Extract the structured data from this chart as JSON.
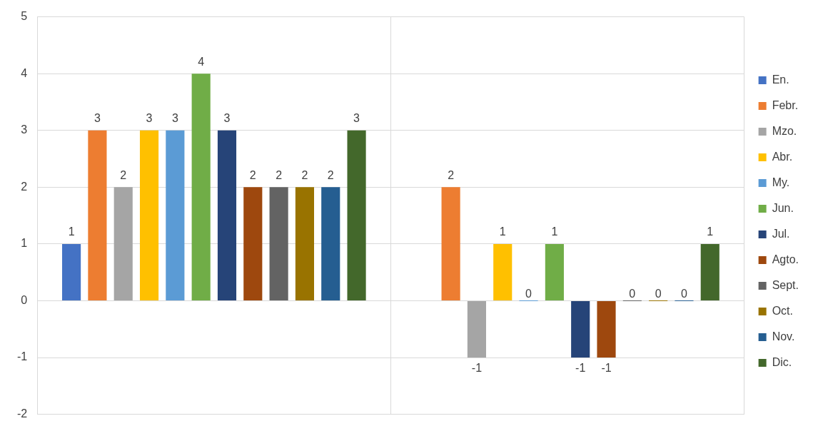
{
  "chart_data": {
    "type": "bar",
    "categories": [
      null,
      null
    ],
    "series": [
      {
        "name": "En.",
        "color": "#4472c4",
        "values": [
          1,
          null
        ]
      },
      {
        "name": "Febr.",
        "color": "#ed7d31",
        "values": [
          3,
          2
        ]
      },
      {
        "name": "Mzo.",
        "color": "#a5a5a5",
        "values": [
          2,
          -1
        ]
      },
      {
        "name": "Abr.",
        "color": "#ffc000",
        "values": [
          3,
          1
        ]
      },
      {
        "name": "My.",
        "color": "#5b9bd5",
        "values": [
          3,
          0
        ]
      },
      {
        "name": "Jun.",
        "color": "#70ad47",
        "values": [
          4,
          1
        ]
      },
      {
        "name": "Jul.",
        "color": "#264478",
        "values": [
          3,
          -1
        ]
      },
      {
        "name": "Agto.",
        "color": "#9e480e",
        "values": [
          2,
          -1
        ]
      },
      {
        "name": "Sept.",
        "color": "#636363",
        "values": [
          2,
          0
        ]
      },
      {
        "name": "Oct.",
        "color": "#997300",
        "values": [
          2,
          0
        ]
      },
      {
        "name": "Nov.",
        "color": "#255e91",
        "values": [
          2,
          0
        ]
      },
      {
        "name": "Dic.",
        "color": "#43682b",
        "values": [
          3,
          1
        ]
      }
    ],
    "ylim": [
      -2,
      5
    ],
    "yticks": [
      -2,
      -1,
      0,
      1,
      2,
      3,
      4,
      5
    ],
    "grid": true,
    "legend": "right",
    "data_labels": true
  }
}
